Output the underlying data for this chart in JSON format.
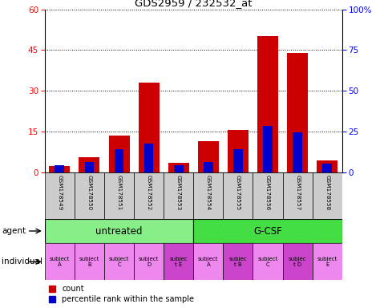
{
  "title": "GDS2959 / 232532_at",
  "samples": [
    "GSM178549",
    "GSM178550",
    "GSM178551",
    "GSM178552",
    "GSM178553",
    "GSM178554",
    "GSM178555",
    "GSM178556",
    "GSM178557",
    "GSM178558"
  ],
  "count_values": [
    2.5,
    5.5,
    13.5,
    33.0,
    3.5,
    11.5,
    15.5,
    50.0,
    44.0,
    4.5
  ],
  "percentile_values": [
    2.7,
    3.9,
    8.7,
    10.5,
    2.7,
    3.9,
    8.7,
    17.1,
    14.7,
    3.3
  ],
  "ylim_left": [
    0,
    60
  ],
  "ylim_right": [
    0,
    100
  ],
  "yticks_left": [
    0,
    15,
    30,
    45,
    60
  ],
  "yticks_right": [
    0,
    25,
    50,
    75,
    100
  ],
  "ytick_labels_right": [
    "0",
    "25",
    "50",
    "75",
    "100%"
  ],
  "bar_color_red": "#cc0000",
  "bar_color_blue": "#0000cc",
  "agent_untreated_label": "untreated",
  "agent_gcsf_label": "G-CSF",
  "agent_color_light": "#88ee88",
  "agent_color_dark": "#44dd44",
  "individual_labels": [
    "subject\nA",
    "subject\nB",
    "subject\nC",
    "subject\nD",
    "subjec\nt E",
    "subject\nA",
    "subjec\nt B",
    "subject\nC",
    "subjec\nt D",
    "subject\nE"
  ],
  "individual_highlight": [
    4,
    6,
    8
  ],
  "individual_color_normal": "#ee88ee",
  "individual_color_highlight": "#cc44cc",
  "gsm_bg_color": "#cccccc",
  "legend_count": "count",
  "legend_pct": "percentile rank within the sample",
  "grid_linestyle": ":",
  "grid_linewidth": 0.7
}
